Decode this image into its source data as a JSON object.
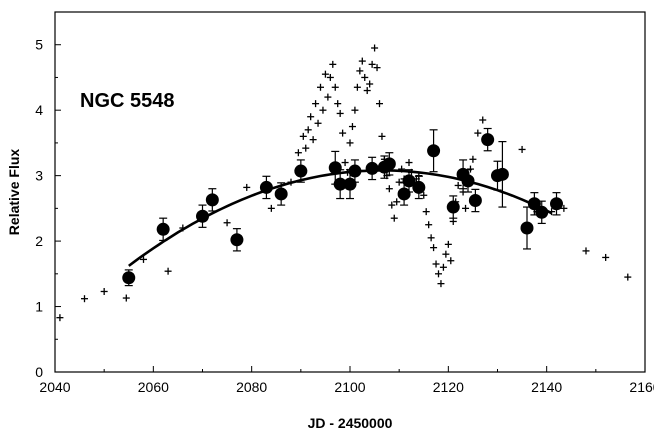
{
  "chart_data": {
    "type": "scatter",
    "annotation": "NGC 5548",
    "xlabel": "JD - 2450000",
    "ylabel": "Relative Flux",
    "xlim": [
      2040,
      2160
    ],
    "ylim": [
      0,
      5.5
    ],
    "xticks": [
      2040,
      2060,
      2080,
      2100,
      2120,
      2140,
      2160
    ],
    "yticks": [
      0,
      1,
      2,
      3,
      4,
      5
    ],
    "grid": false,
    "series": [
      {
        "marker": "plus",
        "points": [
          [
            2041,
            0.83
          ],
          [
            2046,
            1.12
          ],
          [
            2050,
            1.23
          ],
          [
            2054.5,
            1.13
          ],
          [
            2058,
            1.72
          ],
          [
            2063,
            1.54
          ],
          [
            2066,
            2.2
          ],
          [
            2075,
            2.28
          ],
          [
            2079,
            2.82
          ],
          [
            2084,
            2.5
          ],
          [
            2088,
            2.9
          ],
          [
            2089.5,
            3.35
          ],
          [
            2090.5,
            3.6
          ],
          [
            2091,
            3.42
          ],
          [
            2091.5,
            3.7
          ],
          [
            2092,
            3.9
          ],
          [
            2092.5,
            3.55
          ],
          [
            2093,
            4.1
          ],
          [
            2093.5,
            3.8
          ],
          [
            2094,
            4.35
          ],
          [
            2094.5,
            4.0
          ],
          [
            2095,
            4.55
          ],
          [
            2095.5,
            4.2
          ],
          [
            2096,
            4.5
          ],
          [
            2096.5,
            4.7
          ],
          [
            2097,
            4.35
          ],
          [
            2097.5,
            4.1
          ],
          [
            2098,
            3.95
          ],
          [
            2098.5,
            3.65
          ],
          [
            2099,
            3.2
          ],
          [
            2099.5,
            3.05
          ],
          [
            2100,
            3.5
          ],
          [
            2100.5,
            3.75
          ],
          [
            2101,
            4.0
          ],
          [
            2101.5,
            4.35
          ],
          [
            2102,
            4.6
          ],
          [
            2102.5,
            4.75
          ],
          [
            2103,
            4.5
          ],
          [
            2103.5,
            4.3
          ],
          [
            2104,
            4.4
          ],
          [
            2104.5,
            4.7
          ],
          [
            2105,
            4.95
          ],
          [
            2105.5,
            4.65
          ],
          [
            2106,
            4.1
          ],
          [
            2106.5,
            3.6
          ],
          [
            2107,
            3.25
          ],
          [
            2107.5,
            3.0
          ],
          [
            2108,
            2.8
          ],
          [
            2108.5,
            2.55
          ],
          [
            2109,
            2.35
          ],
          [
            2109.5,
            2.6
          ],
          [
            2110,
            2.9
          ],
          [
            2110.5,
            3.1
          ],
          [
            2111,
            2.95
          ],
          [
            2111.5,
            2.75
          ],
          [
            2112,
            3.2
          ],
          [
            2112.5,
            3.05
          ],
          [
            2113,
            2.85
          ],
          [
            2113.5,
            2.95
          ],
          [
            2114,
            3.0
          ],
          [
            2114.5,
            2.8
          ],
          [
            2115,
            2.7
          ],
          [
            2115.5,
            2.45
          ],
          [
            2116,
            2.25
          ],
          [
            2116.5,
            2.05
          ],
          [
            2117,
            1.9
          ],
          [
            2117.5,
            1.65
          ],
          [
            2118,
            1.5
          ],
          [
            2118.5,
            1.35
          ],
          [
            2119,
            1.6
          ],
          [
            2119.5,
            1.8
          ],
          [
            2120,
            1.95
          ],
          [
            2120.5,
            1.7
          ],
          [
            2121,
            2.3
          ],
          [
            2121.5,
            2.6
          ],
          [
            2122,
            2.85
          ],
          [
            2122.5,
            3.0
          ],
          [
            2123,
            2.75
          ],
          [
            2123.5,
            2.5
          ],
          [
            2124,
            2.9
          ],
          [
            2124.5,
            3.1
          ],
          [
            2125,
            3.25
          ],
          [
            2126,
            3.65
          ],
          [
            2127,
            3.85
          ],
          [
            2135,
            3.4
          ],
          [
            2138,
            2.45
          ],
          [
            2141,
            2.45
          ],
          [
            2143.5,
            2.5
          ],
          [
            2148,
            1.85
          ],
          [
            2152,
            1.75
          ],
          [
            2156.5,
            1.45
          ]
        ]
      },
      {
        "marker": "circle",
        "points": [
          [
            2055,
            1.44,
            0.12
          ],
          [
            2062,
            2.18,
            0.17
          ],
          [
            2070,
            2.38,
            0.17
          ],
          [
            2072,
            2.63,
            0.17
          ],
          [
            2077,
            2.02,
            0.17
          ],
          [
            2083,
            2.82,
            0.17
          ],
          [
            2086,
            2.72,
            0.17
          ],
          [
            2090,
            3.07,
            0.17
          ],
          [
            2097,
            3.12,
            0.25
          ],
          [
            2098,
            2.87,
            0.22
          ],
          [
            2100,
            2.87,
            0.22
          ],
          [
            2101,
            3.07,
            0.17
          ],
          [
            2104.5,
            3.11,
            0.17
          ],
          [
            2107,
            3.13,
            0.17
          ],
          [
            2108,
            3.18,
            0.17
          ],
          [
            2111,
            2.72,
            0.17
          ],
          [
            2112,
            2.92,
            0.17
          ],
          [
            2114,
            2.82,
            0.17
          ],
          [
            2117,
            3.38,
            0.32
          ],
          [
            2121,
            2.52,
            0.17
          ],
          [
            2123,
            3.02,
            0.22
          ],
          [
            2124,
            2.92,
            0.17
          ],
          [
            2125.5,
            2.62,
            0.17
          ],
          [
            2128,
            3.55,
            0.17
          ],
          [
            2130,
            3.0,
            0.22
          ],
          [
            2131,
            3.02,
            0.5
          ],
          [
            2136,
            2.2,
            0.32
          ],
          [
            2137.5,
            2.57,
            0.17
          ],
          [
            2139,
            2.44,
            0.17
          ],
          [
            2142,
            2.57,
            0.17
          ]
        ]
      }
    ],
    "fit": {
      "type": "quadratic",
      "x_range": [
        2055,
        2141
      ],
      "points": [
        [
          2055,
          1.6
        ],
        [
          2070,
          2.38
        ],
        [
          2085,
          2.82
        ],
        [
          2098,
          3.05
        ],
        [
          2110,
          3.06
        ],
        [
          2120,
          2.98
        ],
        [
          2130,
          2.75
        ],
        [
          2141,
          2.45
        ]
      ]
    }
  }
}
